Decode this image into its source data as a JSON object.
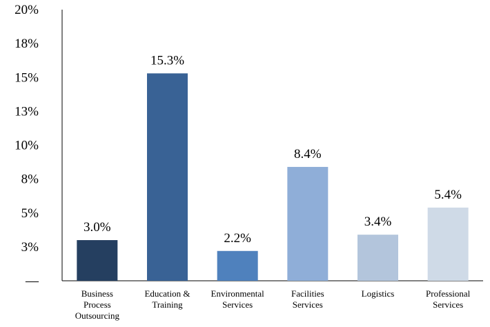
{
  "chart_data": {
    "type": "bar",
    "title": "",
    "xlabel": "",
    "ylabel": "",
    "categories": [
      [
        "Business",
        "Process",
        "Outsourcing"
      ],
      [
        "Education &",
        "Training"
      ],
      [
        "Environmental",
        "Services"
      ],
      [
        "Facilities",
        "Services"
      ],
      [
        "Logistics"
      ],
      [
        "Professional",
        "Services"
      ]
    ],
    "values": [
      3.0,
      15.3,
      2.2,
      8.4,
      3.4,
      5.4
    ],
    "data_labels": [
      "3.0%",
      "15.3%",
      "2.2%",
      "8.4%",
      "3.4%",
      "5.4%"
    ],
    "colors": [
      "#253f60",
      "#396295",
      "#4f81bd",
      "#8faed8",
      "#b3c5dc",
      "#cfdae7"
    ],
    "y_tick_labels": [
      "—",
      "3%",
      "5%",
      "8%",
      "10%",
      "13%",
      "15%",
      "18%",
      "20%"
    ],
    "ylim": [
      0,
      20
    ],
    "grid": false,
    "legend": "none"
  }
}
